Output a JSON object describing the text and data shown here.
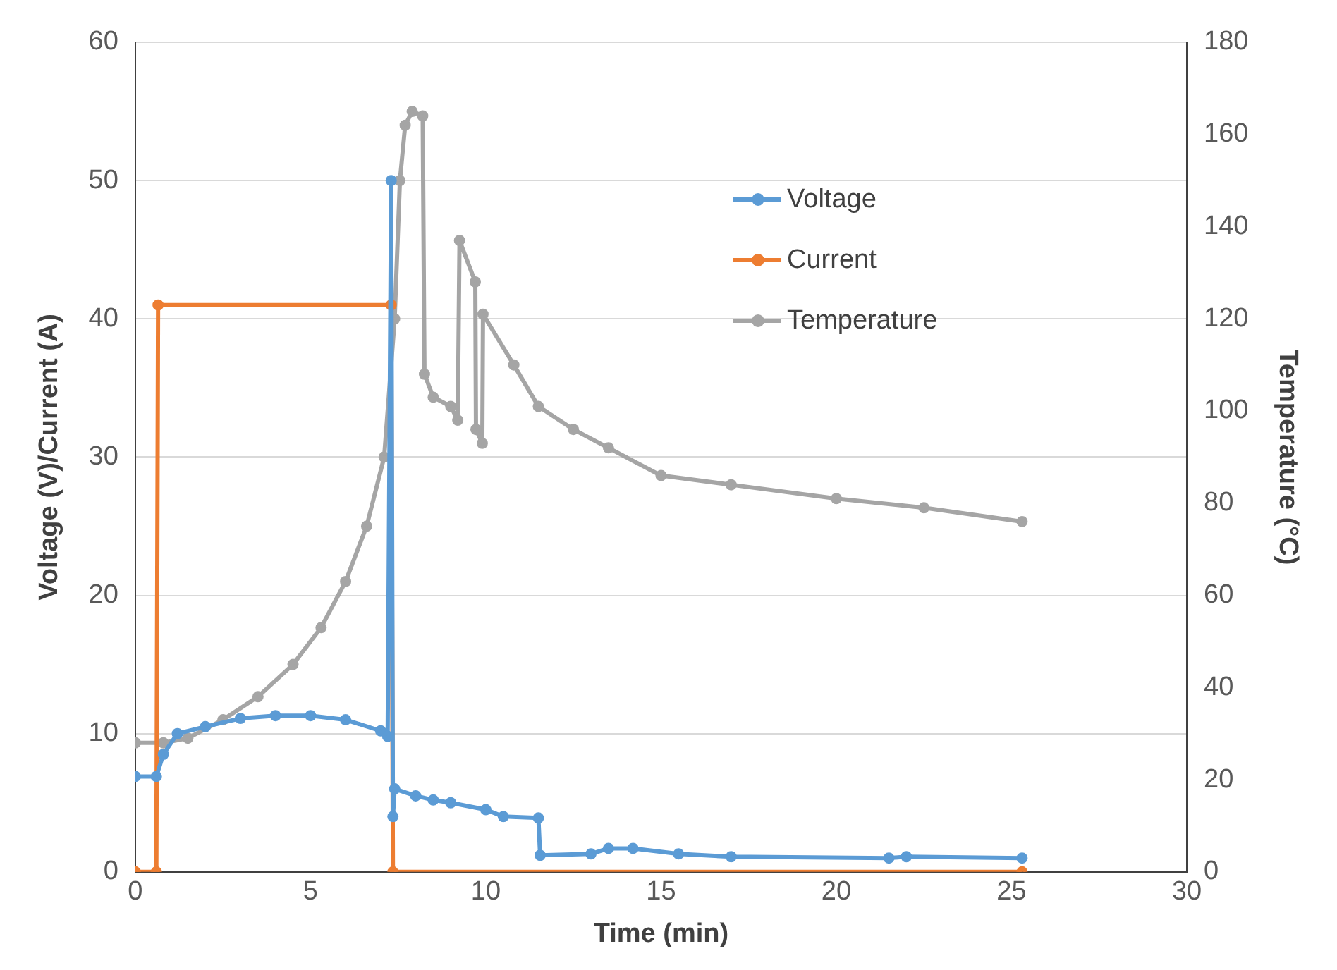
{
  "chart_data": {
    "type": "line",
    "xlabel": "Time (min)",
    "ylabel": "Voltage (V)/Current (A)",
    "y2label": "Temperature (°C)",
    "xlim": [
      0,
      30
    ],
    "xticks": [
      0,
      5,
      10,
      15,
      20,
      25,
      30
    ],
    "ylim": [
      0,
      60
    ],
    "yticks": [
      0,
      10,
      20,
      30,
      40,
      50,
      60
    ],
    "y2lim": [
      0,
      180
    ],
    "y2ticks": [
      0,
      20,
      40,
      60,
      80,
      100,
      120,
      140,
      160,
      180
    ],
    "grid": "y",
    "legend": "top right",
    "marker": "circle",
    "line_style": "solid",
    "series": [
      {
        "name": "Voltage",
        "color": "#5b9bd5",
        "x": [
          0,
          0.6,
          0.8,
          1.2,
          2,
          3,
          4,
          5,
          6,
          7,
          7.2,
          7.3,
          7.35,
          7.4,
          8,
          8.5,
          9,
          10,
          10.5,
          11.5,
          11.55,
          13,
          13.5,
          14.2,
          15.5,
          17,
          21.5,
          22,
          25.3
        ],
        "values": [
          6.9,
          6.9,
          8.5,
          10,
          10.5,
          11.1,
          11.3,
          11.3,
          11,
          10.2,
          9.8,
          50,
          4,
          6,
          5.5,
          5.2,
          5,
          4.5,
          4,
          3.9,
          1.2,
          1.3,
          1.7,
          1.7,
          1.3,
          1.1,
          1.0,
          1.1,
          1.0
        ]
      },
      {
        "name": "Current",
        "color": "#ed7d31",
        "x": [
          0,
          0.6,
          0.65,
          7.3,
          7.35,
          25.3
        ],
        "values": [
          0,
          0,
          41,
          41,
          0,
          0
        ]
      },
      {
        "name": "Temperature",
        "color": "#a5a5a5",
        "axis": "y2",
        "x": [
          0,
          0.8,
          1.5,
          2.5,
          3.5,
          4.5,
          5.3,
          6,
          6.6,
          7.1,
          7.4,
          7.55,
          7.7,
          7.9,
          8.2,
          8.25,
          8.5,
          9,
          9.2,
          9.25,
          9.7,
          9.72,
          9.9,
          9.92,
          10.8,
          11.5,
          12.5,
          13.5,
          15,
          17,
          20,
          22.5,
          25.3
        ],
        "values": [
          28,
          28,
          29,
          33,
          38,
          45,
          53,
          63,
          75,
          90,
          120,
          150,
          162,
          165,
          164,
          108,
          103,
          101,
          98,
          137,
          128,
          96,
          93,
          121,
          110,
          101,
          96,
          92,
          86,
          84,
          81,
          79,
          76
        ]
      }
    ]
  }
}
